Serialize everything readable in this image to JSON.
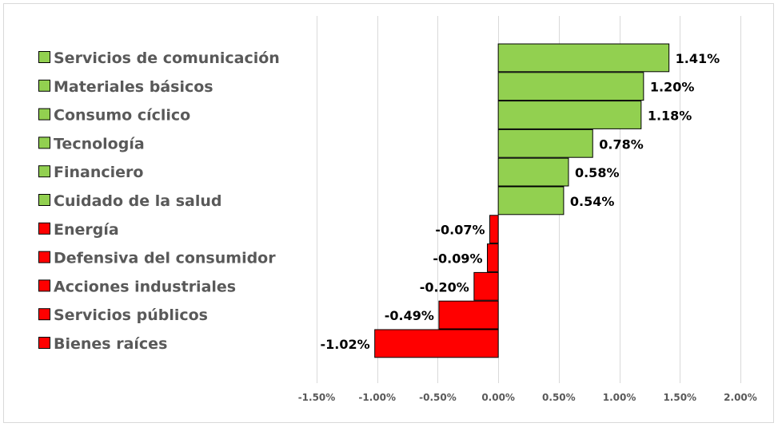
{
  "chart_data": {
    "type": "bar",
    "orientation": "horizontal",
    "categories": [
      "Servicios de comunicación",
      "Materiales básicos",
      "Consumo cíclico",
      "Tecnología",
      "Financiero",
      "Cuidado de la salud",
      "Energía",
      "Defensiva del consumidor",
      "Acciones industriales",
      "Servicios públicos",
      "Bienes raíces"
    ],
    "values": [
      1.41,
      1.2,
      1.18,
      0.78,
      0.58,
      0.54,
      -0.07,
      -0.09,
      -0.2,
      -0.49,
      -1.02
    ],
    "data_labels": [
      "1.41%",
      "1.20%",
      "1.18%",
      "0.78%",
      "0.58%",
      "0.54%",
      "-0.07%",
      "-0.09%",
      "-0.20%",
      "-0.49%",
      "-1.02%"
    ],
    "xlim": [
      -1.5,
      2.0
    ],
    "xticks": [
      -1.5,
      -1.0,
      -0.5,
      0.0,
      0.5,
      1.0,
      1.5,
      2.0
    ],
    "xtick_labels": [
      "-1.50%",
      "-1.00%",
      "-0.50%",
      "0.00%",
      "0.50%",
      "1.00%",
      "1.50%",
      "2.00%"
    ],
    "grid": "vertical",
    "legend": "left",
    "title": "",
    "xlabel": "",
    "ylabel": "",
    "colors": {
      "positive": "#92d050",
      "negative": "#ff0000",
      "edge": "#000000",
      "grid": "#d9d9d9"
    }
  }
}
